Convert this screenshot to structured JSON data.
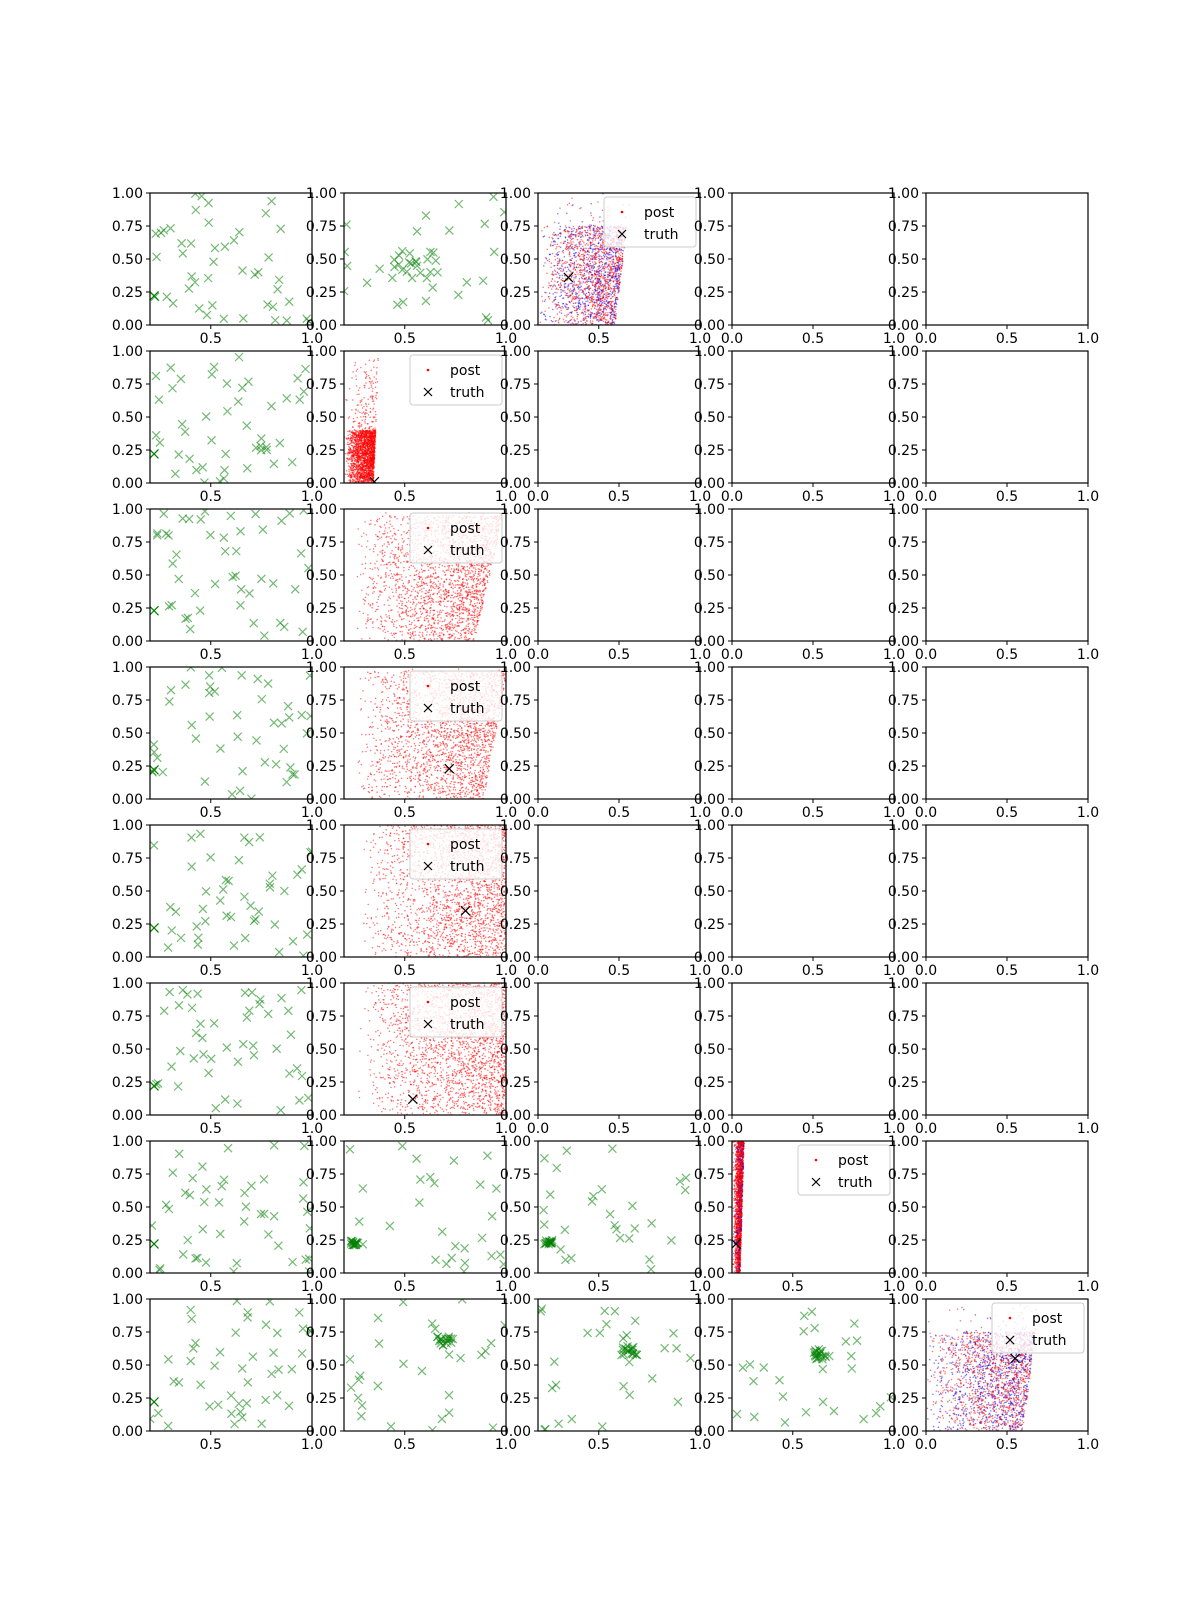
{
  "chart_data": {
    "type": "scatter",
    "layout": {
      "rows": 8,
      "cols": 5
    },
    "grid": false,
    "colors": {
      "post_primary": "#ff0000",
      "post_secondary": "#0000ff",
      "samples": "#008000",
      "truth": "#000000",
      "axes": "#000000"
    },
    "legend_labels": {
      "post": "post",
      "truth": "truth"
    },
    "panels": [
      {
        "row": 0,
        "col": 0,
        "kind": "samples",
        "xlim": [
          0.2,
          1.0
        ],
        "ylim": [
          0,
          1
        ],
        "xticks": [
          "0.5",
          "1.0"
        ],
        "yticks": [
          "0.00",
          "0.25",
          "0.50",
          "0.75",
          "1.00"
        ],
        "truth": [
          0.22,
          0.22
        ],
        "seed": 11
      },
      {
        "row": 0,
        "col": 1,
        "kind": "samples",
        "xlim": [
          0.2,
          1.0
        ],
        "ylim": [
          0,
          1
        ],
        "xticks": [
          "0.5",
          "1.0"
        ],
        "yticks": [
          "0.00",
          "0.25",
          "0.50",
          "0.75",
          "1.00"
        ],
        "seed": 12,
        "cluster": [
          0.55,
          0.45,
          0.12
        ]
      },
      {
        "row": 0,
        "col": 2,
        "kind": "posterior",
        "xlim": [
          0.2,
          1.0
        ],
        "ylim": [
          0,
          1
        ],
        "xticks": [
          "0.5",
          "1.0"
        ],
        "yticks": [
          "0.00",
          "0.25",
          "0.50",
          "0.75",
          "1.00"
        ],
        "truth": [
          0.35,
          0.36
        ],
        "legend": "top-right",
        "mix": 0.35,
        "seed": 13,
        "shape": {
          "x0": 0.2,
          "x1": 0.62,
          "top": 0.75,
          "tilt": 0.08
        }
      },
      {
        "row": 0,
        "col": 3,
        "kind": "empty",
        "xlim": [
          0,
          1
        ],
        "ylim": [
          0,
          1
        ],
        "xticks": [
          "0.0",
          "0.5",
          "1.0"
        ],
        "yticks": [
          "0.00",
          "0.25",
          "0.50",
          "0.75",
          "1.00"
        ]
      },
      {
        "row": 0,
        "col": 4,
        "kind": "empty",
        "xlim": [
          0,
          1
        ],
        "ylim": [
          0,
          1
        ],
        "xticks": [
          "0.0",
          "0.5",
          "1.0"
        ],
        "yticks": [
          "0.00",
          "0.25",
          "0.50",
          "0.75",
          "1.00"
        ]
      },
      {
        "row": 1,
        "col": 0,
        "kind": "samples",
        "xlim": [
          0.2,
          1.0
        ],
        "ylim": [
          0,
          1
        ],
        "xticks": [
          "0.5",
          "1.0"
        ],
        "yticks": [
          "0.00",
          "0.25",
          "0.50",
          "0.75",
          "1.00"
        ],
        "truth": [
          0.22,
          0.22
        ],
        "seed": 21
      },
      {
        "row": 1,
        "col": 1,
        "kind": "posterior",
        "xlim": [
          0.2,
          1.0
        ],
        "ylim": [
          0,
          1
        ],
        "xticks": [
          "0.5",
          "1.0"
        ],
        "yticks": [
          "0.00",
          "0.25",
          "0.50",
          "0.75",
          "1.00"
        ],
        "truth": [
          0.35,
          0.01
        ],
        "legend": "top-right",
        "mix": 0.0,
        "seed": 22,
        "shape": {
          "x0": 0.2,
          "x1": 0.36,
          "top": 0.4,
          "tilt": 0.03
        }
      },
      {
        "row": 1,
        "col": 2,
        "kind": "empty",
        "xlim": [
          0,
          1
        ],
        "ylim": [
          0,
          1
        ],
        "xticks": [
          "0.0",
          "0.5",
          "1.0"
        ],
        "yticks": [
          "0.00",
          "0.25",
          "0.50",
          "0.75",
          "1.00"
        ]
      },
      {
        "row": 1,
        "col": 3,
        "kind": "empty",
        "xlim": [
          0,
          1
        ],
        "ylim": [
          0,
          1
        ],
        "xticks": [
          "0.0",
          "0.5",
          "1.0"
        ],
        "yticks": [
          "0.00",
          "0.25",
          "0.50",
          "0.75",
          "1.00"
        ]
      },
      {
        "row": 1,
        "col": 4,
        "kind": "empty",
        "xlim": [
          0,
          1
        ],
        "ylim": [
          0,
          1
        ],
        "xticks": [
          "0.0",
          "0.5",
          "1.0"
        ],
        "yticks": [
          "0.00",
          "0.25",
          "0.50",
          "0.75",
          "1.00"
        ]
      },
      {
        "row": 2,
        "col": 0,
        "kind": "samples",
        "xlim": [
          0.2,
          1.0
        ],
        "ylim": [
          0,
          1
        ],
        "xticks": [
          "0.5",
          "1.0"
        ],
        "yticks": [
          "0.00",
          "0.25",
          "0.50",
          "0.75",
          "1.00"
        ],
        "truth": [
          0.22,
          0.23
        ],
        "seed": 31
      },
      {
        "row": 2,
        "col": 1,
        "kind": "posterior",
        "xlim": [
          0.2,
          1.0
        ],
        "ylim": [
          0,
          1
        ],
        "xticks": [
          "0.5",
          "1.0"
        ],
        "yticks": [
          "0.00",
          "0.25",
          "0.50",
          "0.75",
          "1.00"
        ],
        "legend": "top-right",
        "mix": 0.0,
        "seed": 32,
        "shape": {
          "x0": 0.25,
          "x1": 0.92,
          "top": 0.95,
          "tilt": 0.15
        }
      },
      {
        "row": 2,
        "col": 2,
        "kind": "empty",
        "xlim": [
          0,
          1
        ],
        "ylim": [
          0,
          1
        ],
        "xticks": [
          "0.0",
          "0.5",
          "1.0"
        ],
        "yticks": [
          "0.00",
          "0.25",
          "0.50",
          "0.75",
          "1.00"
        ]
      },
      {
        "row": 2,
        "col": 3,
        "kind": "empty",
        "xlim": [
          0,
          1
        ],
        "ylim": [
          0,
          1
        ],
        "xticks": [
          "0.0",
          "0.5",
          "1.0"
        ],
        "yticks": [
          "0.00",
          "0.25",
          "0.50",
          "0.75",
          "1.00"
        ]
      },
      {
        "row": 2,
        "col": 4,
        "kind": "empty",
        "xlim": [
          0,
          1
        ],
        "ylim": [
          0,
          1
        ],
        "xticks": [
          "0.0",
          "0.5",
          "1.0"
        ],
        "yticks": [
          "0.00",
          "0.25",
          "0.50",
          "0.75",
          "1.00"
        ]
      },
      {
        "row": 3,
        "col": 0,
        "kind": "samples",
        "xlim": [
          0.2,
          1.0
        ],
        "ylim": [
          0,
          1
        ],
        "xticks": [
          "0.5",
          "1.0"
        ],
        "yticks": [
          "0.00",
          "0.25",
          "0.50",
          "0.75",
          "1.00"
        ],
        "truth": [
          0.22,
          0.22
        ],
        "seed": 41
      },
      {
        "row": 3,
        "col": 1,
        "kind": "posterior",
        "xlim": [
          0.2,
          1.0
        ],
        "ylim": [
          0,
          1
        ],
        "xticks": [
          "0.5",
          "1.0"
        ],
        "yticks": [
          "0.00",
          "0.25",
          "0.50",
          "0.75",
          "1.00"
        ],
        "truth": [
          0.72,
          0.23
        ],
        "legend": "top-right",
        "mix": 0.0,
        "seed": 42,
        "shape": {
          "x0": 0.25,
          "x1": 0.95,
          "top": 0.97,
          "tilt": 0.12
        }
      },
      {
        "row": 3,
        "col": 2,
        "kind": "empty",
        "xlim": [
          0,
          1
        ],
        "ylim": [
          0,
          1
        ],
        "xticks": [
          "0.0",
          "0.5",
          "1.0"
        ],
        "yticks": [
          "0.00",
          "0.25",
          "0.50",
          "0.75",
          "1.00"
        ]
      },
      {
        "row": 3,
        "col": 3,
        "kind": "empty",
        "xlim": [
          0,
          1
        ],
        "ylim": [
          0,
          1
        ],
        "xticks": [
          "0.0",
          "0.5",
          "1.0"
        ],
        "yticks": [
          "0.00",
          "0.25",
          "0.50",
          "0.75",
          "1.00"
        ]
      },
      {
        "row": 3,
        "col": 4,
        "kind": "empty",
        "xlim": [
          0,
          1
        ],
        "ylim": [
          0,
          1
        ],
        "xticks": [
          "0.0",
          "0.5",
          "1.0"
        ],
        "yticks": [
          "0.00",
          "0.25",
          "0.50",
          "0.75",
          "1.00"
        ]
      },
      {
        "row": 4,
        "col": 0,
        "kind": "samples",
        "xlim": [
          0.2,
          1.0
        ],
        "ylim": [
          0,
          1
        ],
        "xticks": [
          "0.5",
          "1.0"
        ],
        "yticks": [
          "0.00",
          "0.25",
          "0.50",
          "0.75",
          "1.00"
        ],
        "truth": [
          0.22,
          0.22
        ],
        "seed": 51
      },
      {
        "row": 4,
        "col": 1,
        "kind": "posterior",
        "xlim": [
          0.2,
          1.0
        ],
        "ylim": [
          0,
          1
        ],
        "xticks": [
          "0.5",
          "1.0"
        ],
        "yticks": [
          "0.00",
          "0.25",
          "0.50",
          "0.75",
          "1.00"
        ],
        "truth": [
          0.8,
          0.35
        ],
        "legend": "top-right",
        "mix": 0.0,
        "seed": 52,
        "shape": {
          "x0": 0.28,
          "x1": 1.0,
          "top": 1.0,
          "tilt": 0.0
        }
      },
      {
        "row": 4,
        "col": 2,
        "kind": "empty",
        "xlim": [
          0,
          1
        ],
        "ylim": [
          0,
          1
        ],
        "xticks": [
          "0.0",
          "0.5",
          "1.0"
        ],
        "yticks": [
          "0.00",
          "0.25",
          "0.50",
          "0.75",
          "1.00"
        ]
      },
      {
        "row": 4,
        "col": 3,
        "kind": "empty",
        "xlim": [
          0,
          1
        ],
        "ylim": [
          0,
          1
        ],
        "xticks": [
          "0.0",
          "0.5",
          "1.0"
        ],
        "yticks": [
          "0.00",
          "0.25",
          "0.50",
          "0.75",
          "1.00"
        ]
      },
      {
        "row": 4,
        "col": 4,
        "kind": "empty",
        "xlim": [
          0,
          1
        ],
        "ylim": [
          0,
          1
        ],
        "xticks": [
          "0.0",
          "0.5",
          "1.0"
        ],
        "yticks": [
          "0.00",
          "0.25",
          "0.50",
          "0.75",
          "1.00"
        ]
      },
      {
        "row": 5,
        "col": 0,
        "kind": "samples",
        "xlim": [
          0.2,
          1.0
        ],
        "ylim": [
          0,
          1
        ],
        "xticks": [
          "0.5",
          "1.0"
        ],
        "yticks": [
          "0.00",
          "0.25",
          "0.50",
          "0.75",
          "1.00"
        ],
        "truth": [
          0.22,
          0.22
        ],
        "seed": 61
      },
      {
        "row": 5,
        "col": 1,
        "kind": "posterior",
        "xlim": [
          0.2,
          1.0
        ],
        "ylim": [
          0,
          1
        ],
        "xticks": [
          "0.5",
          "1.0"
        ],
        "yticks": [
          "0.00",
          "0.25",
          "0.50",
          "0.75",
          "1.00"
        ],
        "truth": [
          0.54,
          0.12
        ],
        "legend": "top-right",
        "mix": 0.0,
        "seed": 62,
        "shape": {
          "x0": 0.26,
          "x1": 1.0,
          "top": 1.0,
          "tilt": 0.0
        }
      },
      {
        "row": 5,
        "col": 2,
        "kind": "empty",
        "xlim": [
          0,
          1
        ],
        "ylim": [
          0,
          1
        ],
        "xticks": [
          "0.0",
          "0.5",
          "1.0"
        ],
        "yticks": [
          "0.00",
          "0.25",
          "0.50",
          "0.75",
          "1.00"
        ]
      },
      {
        "row": 5,
        "col": 3,
        "kind": "empty",
        "xlim": [
          0,
          1
        ],
        "ylim": [
          0,
          1
        ],
        "xticks": [
          "0.0",
          "0.5",
          "1.0"
        ],
        "yticks": [
          "0.00",
          "0.25",
          "0.50",
          "0.75",
          "1.00"
        ]
      },
      {
        "row": 5,
        "col": 4,
        "kind": "empty",
        "xlim": [
          0,
          1
        ],
        "ylim": [
          0,
          1
        ],
        "xticks": [
          "0.0",
          "0.5",
          "1.0"
        ],
        "yticks": [
          "0.00",
          "0.25",
          "0.50",
          "0.75",
          "1.00"
        ]
      },
      {
        "row": 6,
        "col": 0,
        "kind": "samples",
        "xlim": [
          0.2,
          1.0
        ],
        "ylim": [
          0,
          1
        ],
        "xticks": [
          "0.5",
          "1.0"
        ],
        "yticks": [
          "0.00",
          "0.25",
          "0.50",
          "0.75",
          "1.00"
        ],
        "truth": [
          0.22,
          0.22
        ],
        "seed": 71
      },
      {
        "row": 6,
        "col": 1,
        "kind": "samples",
        "xlim": [
          0.2,
          1.0
        ],
        "ylim": [
          0,
          1
        ],
        "xticks": [
          "0.5",
          "1.0"
        ],
        "yticks": [
          "0.00",
          "0.25",
          "0.50",
          "0.75",
          "1.00"
        ],
        "seed": 72,
        "cluster": [
          0.25,
          0.23,
          0.02
        ]
      },
      {
        "row": 6,
        "col": 2,
        "kind": "samples",
        "xlim": [
          0.2,
          1.0
        ],
        "ylim": [
          0,
          1
        ],
        "xticks": [
          "0.5",
          "1.0"
        ],
        "yticks": [
          "0.00",
          "0.25",
          "0.50",
          "0.75",
          "1.00"
        ],
        "seed": 73,
        "cluster": [
          0.25,
          0.23,
          0.02
        ]
      },
      {
        "row": 6,
        "col": 3,
        "kind": "posterior",
        "xlim": [
          0.2,
          1.0
        ],
        "ylim": [
          0,
          1
        ],
        "xticks": [
          "0.5",
          "1.0"
        ],
        "yticks": [
          "0.00",
          "0.25",
          "0.50",
          "0.75",
          "1.00"
        ],
        "truth": [
          0.22,
          0.22
        ],
        "legend": "top-right",
        "mix": 0.15,
        "seed": 74,
        "shape": {
          "x0": 0.2,
          "x1": 0.25,
          "top": 1.0,
          "tilt": 0.02
        }
      },
      {
        "row": 6,
        "col": 4,
        "kind": "empty",
        "xlim": [
          0,
          1
        ],
        "ylim": [
          0,
          1
        ],
        "xticks": [
          "0.0",
          "0.5",
          "1.0"
        ],
        "yticks": [
          "0.00",
          "0.25",
          "0.50",
          "0.75",
          "1.00"
        ]
      },
      {
        "row": 7,
        "col": 0,
        "kind": "samples",
        "xlim": [
          0.2,
          1.0
        ],
        "ylim": [
          0,
          1
        ],
        "xticks": [
          "0.5",
          "1.0"
        ],
        "yticks": [
          "0.00",
          "0.25",
          "0.50",
          "0.75",
          "1.00"
        ],
        "truth": [
          0.22,
          0.22
        ],
        "seed": 81
      },
      {
        "row": 7,
        "col": 1,
        "kind": "samples",
        "xlim": [
          0.2,
          1.0
        ],
        "ylim": [
          0,
          1
        ],
        "xticks": [
          "0.5",
          "1.0"
        ],
        "yticks": [
          "0.00",
          "0.25",
          "0.50",
          "0.75",
          "1.00"
        ],
        "seed": 82,
        "cluster": [
          0.7,
          0.68,
          0.04
        ]
      },
      {
        "row": 7,
        "col": 2,
        "kind": "samples",
        "xlim": [
          0.2,
          1.0
        ],
        "ylim": [
          0,
          1
        ],
        "xticks": [
          "0.5",
          "1.0"
        ],
        "yticks": [
          "0.00",
          "0.25",
          "0.50",
          "0.75",
          "1.00"
        ],
        "seed": 83,
        "cluster": [
          0.65,
          0.6,
          0.04
        ]
      },
      {
        "row": 7,
        "col": 3,
        "kind": "samples",
        "xlim": [
          0.2,
          1.0
        ],
        "ylim": [
          0,
          1
        ],
        "xticks": [
          "0.5",
          "1.0"
        ],
        "yticks": [
          "0.00",
          "0.25",
          "0.50",
          "0.75",
          "1.00"
        ],
        "seed": 84,
        "cluster": [
          0.63,
          0.58,
          0.04
        ]
      },
      {
        "row": 7,
        "col": 4,
        "kind": "posterior",
        "xlim": [
          0.0,
          1.0
        ],
        "ylim": [
          0,
          1
        ],
        "xticks": [
          "0.0",
          "0.5",
          "1.0"
        ],
        "yticks": [
          "0.00",
          "0.25",
          "0.50",
          "0.75",
          "1.00"
        ],
        "truth": [
          0.55,
          0.55
        ],
        "legend": "top-right",
        "mix": 0.4,
        "seed": 85,
        "shape": {
          "x0": 0.0,
          "x1": 0.65,
          "top": 0.75,
          "tilt": 0.1
        }
      }
    ]
  }
}
